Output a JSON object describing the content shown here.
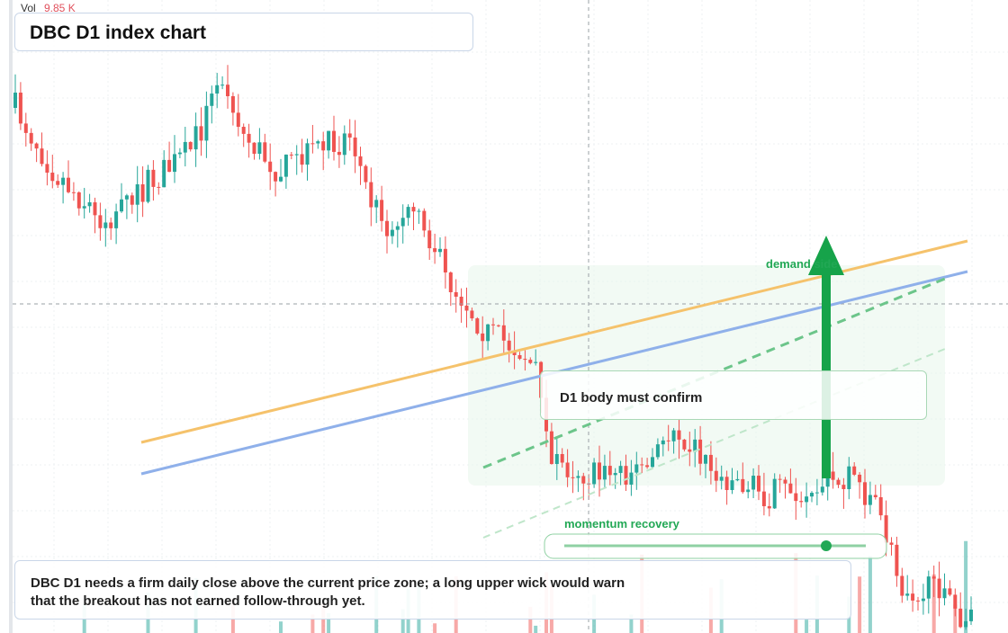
{
  "header": {
    "vol_label": "Vol",
    "vol_value": "9.85 K",
    "title": "DBC D1 index chart"
  },
  "annotations": {
    "arrow_label": "demand side",
    "confirm_box": "D1 body must confirm",
    "slider_label": "momentum recovery"
  },
  "note": {
    "text": "DBC D1 needs a firm daily close above the current price zone; a long upper wick would warn that the breakout has not earned follow-through yet."
  }
}
